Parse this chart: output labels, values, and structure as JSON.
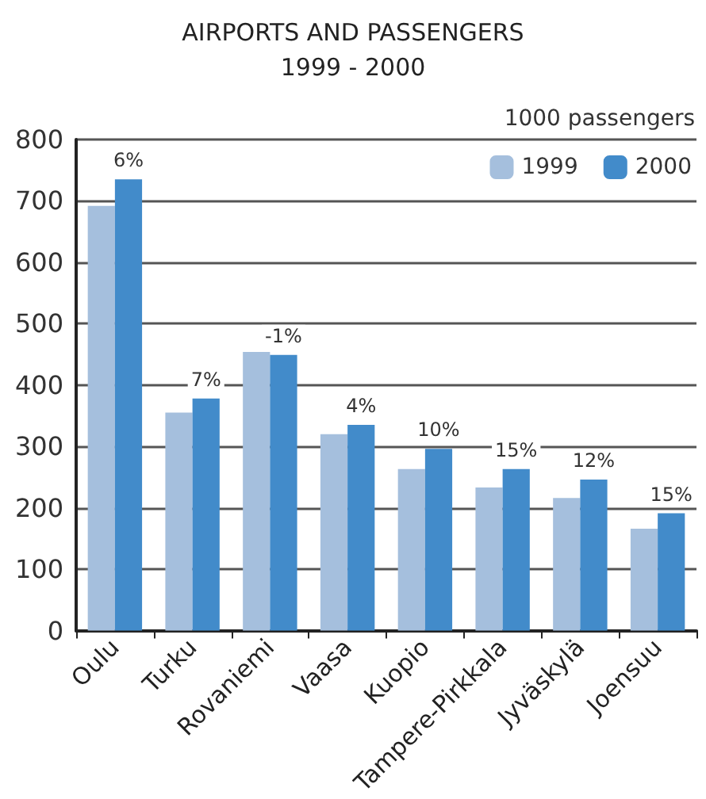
{
  "chart_data": {
    "type": "bar",
    "title": "AIRPORTS AND PASSENGERS",
    "subtitle": "1999 - 2000",
    "ylabel": "1000 passengers",
    "categories": [
      "Oulu",
      "Turku",
      "Rovaniemi",
      "Vaasa",
      "Kuopio",
      "Tampere-Pirkkala",
      "Jyväskylä",
      "Joensuu"
    ],
    "series": [
      {
        "name": "1999",
        "color": "#a5bfdd",
        "values": [
          692,
          355,
          454,
          320,
          263,
          233,
          216,
          166
        ]
      },
      {
        "name": "2000",
        "color": "#428bca",
        "values": [
          735,
          378,
          449,
          335,
          296,
          263,
          246,
          191
        ]
      }
    ],
    "annotations": [
      {
        "text": "6%",
        "x": "Oulu",
        "y": 735
      },
      {
        "text": "7%",
        "x": "Turku",
        "y": 378
      },
      {
        "text": "-1%",
        "x": "Rovaniemi",
        "y": 449
      },
      {
        "text": "4%",
        "x": "Vaasa",
        "y": 335
      },
      {
        "text": "10%",
        "x": "Kuopio",
        "y": 296
      },
      {
        "text": "15%",
        "x": "Tampere-Pirkkala",
        "y": 263
      },
      {
        "text": "12%",
        "x": "Jyväskylä",
        "y": 246
      },
      {
        "text": "15%",
        "x": "Joensuu",
        "y": 191
      }
    ],
    "ylim": [
      0,
      800
    ],
    "yticks": [
      0,
      100,
      200,
      300,
      400,
      500,
      600,
      700,
      800
    ],
    "grid": "y",
    "legend": "top right"
  }
}
